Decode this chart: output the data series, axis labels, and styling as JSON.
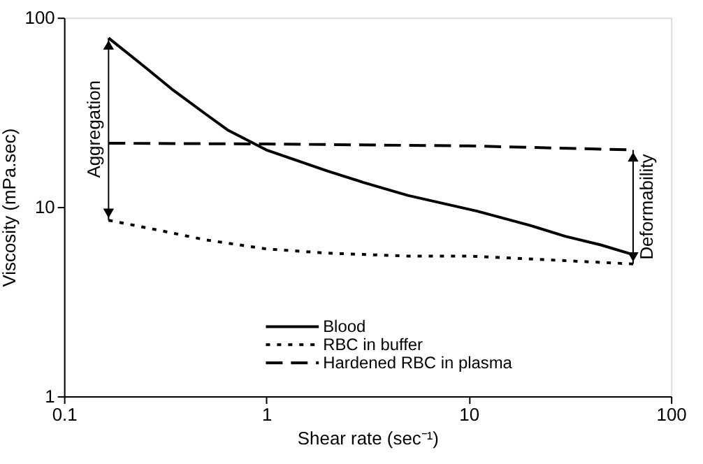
{
  "chart_data": {
    "type": "line",
    "xlabel": "Shear rate (sec⁻¹)",
    "ylabel": "Viscosity (mPa.sec)",
    "log": "xy",
    "xlim": [
      0.1,
      100
    ],
    "ylim": [
      1,
      100
    ],
    "xticks": [
      0.1,
      1,
      10,
      100
    ],
    "yticks": [
      1,
      10,
      100
    ],
    "grid": false,
    "legend": "bottom",
    "marker": "none",
    "series": [
      {
        "name": "Blood",
        "color": "#000000",
        "line_style": "solid",
        "x": [
          0.166,
          0.25,
          0.342,
          0.5,
          0.643,
          1,
          2,
          3,
          5,
          11,
          20,
          30,
          45,
          65
        ],
        "values": [
          78,
          55,
          41.8,
          31,
          25.5,
          20,
          15.5,
          13.5,
          11.5,
          9.5,
          8,
          7,
          6.3,
          5.6
        ]
      },
      {
        "name": "RBC in buffer",
        "color": "#000000",
        "line_style": "dotted",
        "x": [
          0.166,
          0.3,
          0.5,
          1,
          2,
          5,
          10,
          30,
          65
        ],
        "values": [
          8.5,
          7.5,
          6.7,
          6.0,
          5.7,
          5.5,
          5.5,
          5.2,
          5.0
        ]
      },
      {
        "name": "Hardened RBC in plasma",
        "color": "#000000",
        "line_style": "dashed",
        "x": [
          0.166,
          1,
          10,
          65
        ],
        "values": [
          21.7,
          21.5,
          21,
          20
        ]
      }
    ],
    "annotations": [
      "Aggregation",
      "Deformability"
    ]
  }
}
